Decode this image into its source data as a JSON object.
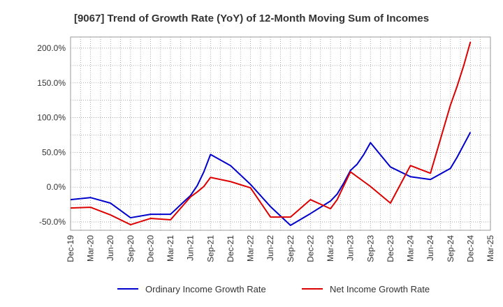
{
  "chart_data": {
    "type": "line",
    "title": "[9067]  Trend of Growth Rate (YoY) of 12-Month Moving Sum of Incomes",
    "xlabel": "",
    "ylabel": "",
    "x_ticks": [
      "Dec-19",
      "Mar-20",
      "Jun-20",
      "Sep-20",
      "Dec-20",
      "Mar-21",
      "Jun-21",
      "Sep-21",
      "Dec-21",
      "Mar-22",
      "Jun-22",
      "Sep-22",
      "Dec-22",
      "Mar-23",
      "Jun-23",
      "Sep-23",
      "Dec-23",
      "Mar-24",
      "Jun-24",
      "Sep-24",
      "Dec-24",
      "Mar-25"
    ],
    "y_ticks": [
      "200.0%",
      "150.0%",
      "100.0%",
      "50.0%",
      "0.0%",
      "-50.0%"
    ],
    "y_tick_values": [
      200,
      150,
      100,
      50,
      0,
      -50
    ],
    "ylim": [
      -62,
      216
    ],
    "grid": true,
    "legend_position": "bottom",
    "x": [
      "Dec-19",
      "Mar-20",
      "Jun-20",
      "Sep-20",
      "Dec-20",
      "Mar-21",
      "May-21",
      "Jun-21",
      "Jul-21",
      "Aug-21",
      "Sep-21",
      "Dec-21",
      "Mar-22",
      "Jun-22",
      "Sep-22",
      "Dec-22",
      "Mar-23",
      "Apr-23",
      "May-23",
      "Jun-23",
      "Jul-23",
      "Aug-23",
      "Sep-23",
      "Dec-23",
      "Mar-24",
      "Jun-24",
      "Sep-24",
      "Oct-24",
      "Nov-24",
      "Dec-24"
    ],
    "series": [
      {
        "name": "Ordinary Income Growth Rate",
        "color": "#0000cc",
        "values": [
          -18,
          -15,
          -23,
          -44,
          -39,
          -39,
          -21,
          -12,
          2,
          22,
          47,
          31,
          4,
          -28,
          -55,
          -38,
          -20,
          -10,
          6,
          24,
          33,
          47,
          64,
          29,
          15,
          11,
          27,
          43,
          61,
          79
        ]
      },
      {
        "name": "Net Income Growth Rate",
        "color": "#dd0000",
        "values": [
          -30,
          -29,
          -40,
          -54,
          -45,
          -47,
          -25,
          -14,
          -7,
          1,
          14,
          8,
          -1,
          -43,
          -43,
          -18,
          -31,
          -18,
          2,
          22,
          15,
          8,
          1,
          -23,
          31,
          20,
          118,
          145,
          175,
          209
        ]
      }
    ]
  }
}
